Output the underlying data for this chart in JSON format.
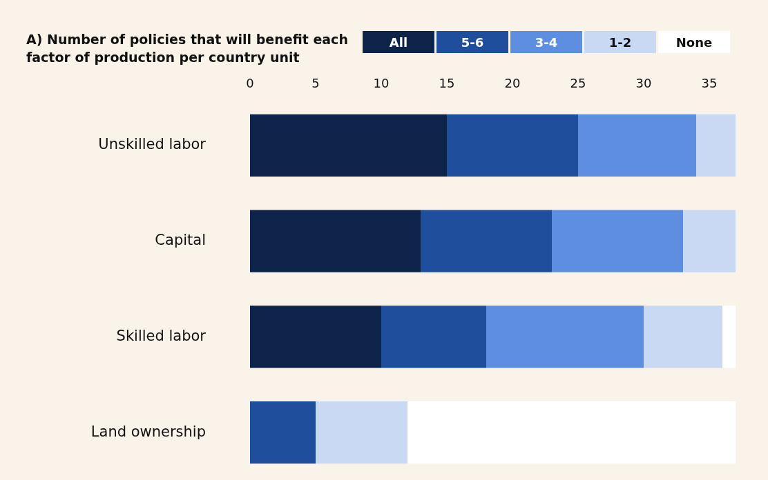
{
  "chart_data": {
    "type": "bar",
    "orientation": "horizontal",
    "stacked": true,
    "title": "A) Number of policies that will benefit each factor of production per country unit",
    "categories": [
      "Unskilled labor",
      "Capital",
      "Skilled labor",
      "Land ownership"
    ],
    "series": [
      {
        "name": "All",
        "color": "#0e2349",
        "values": [
          15,
          13,
          10,
          0
        ]
      },
      {
        "name": "5-6",
        "color": "#1f4e9c",
        "values": [
          10,
          10,
          8,
          5
        ]
      },
      {
        "name": "3-4",
        "color": "#5d8ee0",
        "values": [
          9,
          10,
          12,
          0
        ]
      },
      {
        "name": "1-2",
        "color": "#c9d8f3",
        "values": [
          3,
          4,
          6,
          7
        ]
      },
      {
        "name": "None",
        "color": "#ffffff",
        "values": [
          0,
          0,
          1,
          25
        ]
      }
    ],
    "xlim": [
      0,
      37
    ],
    "xticks": [
      0,
      5,
      10,
      15,
      20,
      25,
      30,
      35
    ],
    "legend": "top right"
  }
}
